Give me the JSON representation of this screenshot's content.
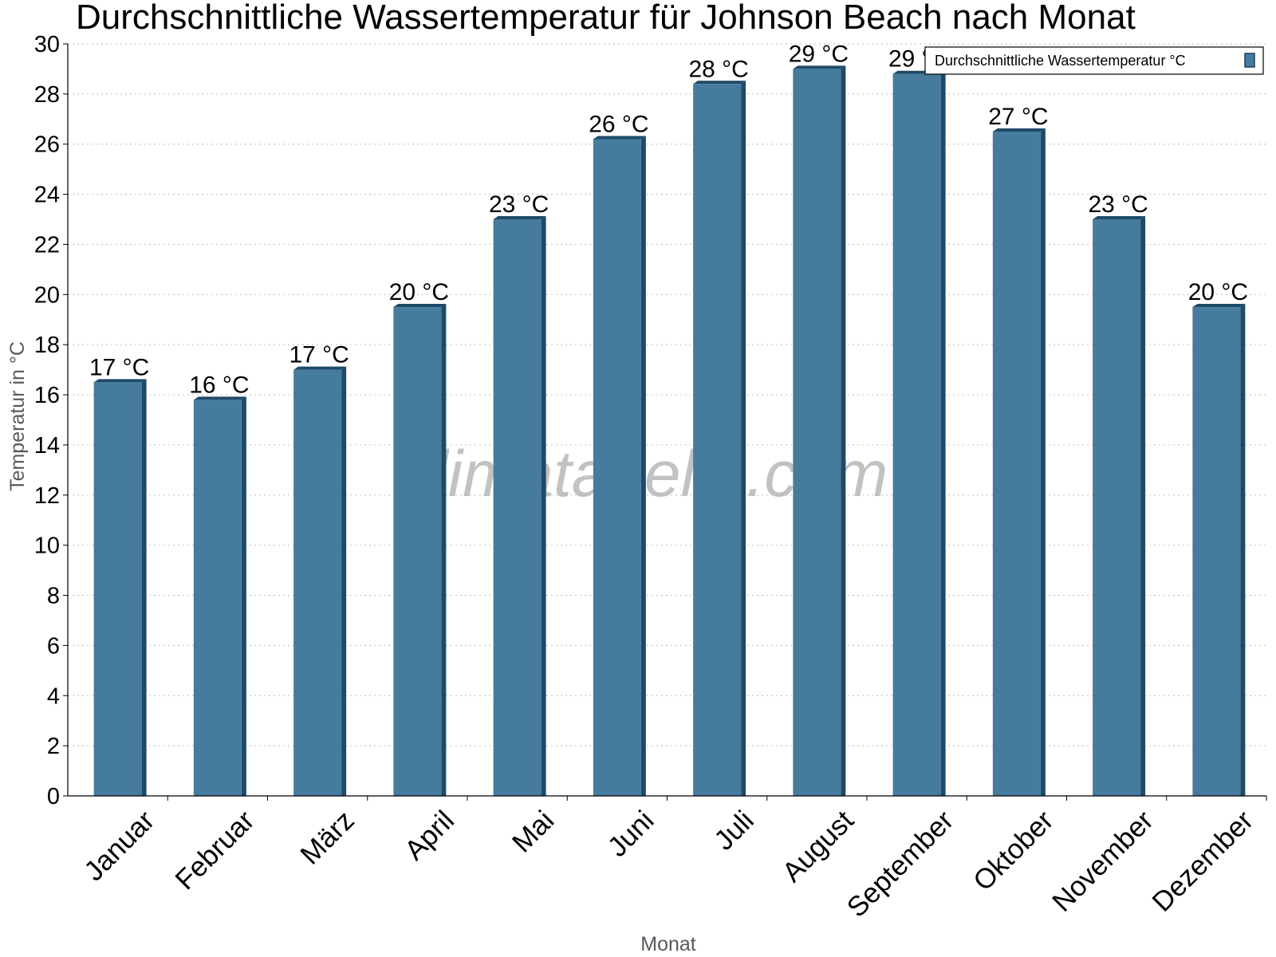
{
  "chart_data": {
    "type": "bar",
    "title": "Durchschnittliche Wassertemperatur für Johnson Beach nach Monat",
    "xlabel": "Monat",
    "ylabel": "Temperatur in °C",
    "ylim": [
      0,
      30
    ],
    "yticks": [
      0,
      2,
      4,
      6,
      8,
      10,
      12,
      14,
      16,
      18,
      20,
      22,
      24,
      26,
      28,
      30
    ],
    "grid": true,
    "legend_position": "top-right",
    "categories": [
      "Januar",
      "Februar",
      "März",
      "April",
      "Mai",
      "Juni",
      "Juli",
      "August",
      "September",
      "Oktober",
      "November",
      "Dezember"
    ],
    "series": [
      {
        "name": "Durchschnittliche Wassertemperatur °C",
        "color": "#457b9d",
        "values": [
          16.5,
          15.8,
          17.0,
          19.5,
          23.0,
          26.2,
          28.4,
          29.0,
          28.8,
          26.5,
          23.0,
          19.5
        ],
        "labels": [
          "17 °C",
          "16 °C",
          "17 °C",
          "20 °C",
          "23 °C",
          "26 °C",
          "28 °C",
          "29 °C",
          "29 °C",
          "27 °C",
          "23 °C",
          "20 °C"
        ]
      }
    ],
    "watermark": "klimatabelle.com"
  }
}
